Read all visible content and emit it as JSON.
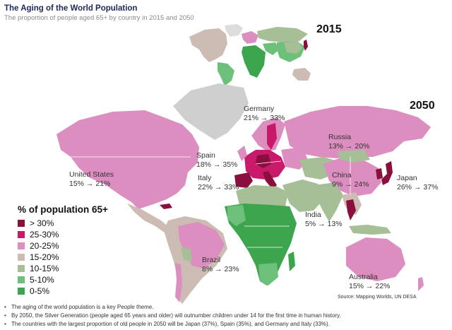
{
  "header": {
    "title": "The Aging of the World Population",
    "subtitle": "The proportion of people aged 65+ by country in 2015 and 2050"
  },
  "years": {
    "small_map": "2015",
    "large_map": "2050"
  },
  "country_labels": [
    {
      "name": "Germany",
      "values": "21% → 33%"
    },
    {
      "name": "Russia",
      "values": "13% → 20%"
    },
    {
      "name": "Spain",
      "values": "18% → 35%"
    },
    {
      "name": "United States",
      "values": "15% → 21%"
    },
    {
      "name": "Italy",
      "values": "22% → 33%"
    },
    {
      "name": "China",
      "values": "9% → 24%"
    },
    {
      "name": "Japan",
      "values": "26% → 37%"
    },
    {
      "name": "India",
      "values": "5% → 13%"
    },
    {
      "name": "Brazil",
      "values": "8% → 23%"
    },
    {
      "name": "Australia",
      "values": "15% → 22%"
    }
  ],
  "legend": {
    "title": "% of population 65+",
    "items": [
      {
        "label": "> 30%",
        "color": "#8b0f3c"
      },
      {
        "label": "25-30%",
        "color": "#c8196b"
      },
      {
        "label": "20-25%",
        "color": "#dc8ec0"
      },
      {
        "label": "15-20%",
        "color": "#cdbcb3"
      },
      {
        "label": "10-15%",
        "color": "#a7bf96"
      },
      {
        "label": "5-10%",
        "color": "#6cc07a"
      },
      {
        "label": "0-5%",
        "color": "#3da54e"
      }
    ]
  },
  "source": "Source: Mapping Worlds, UN DESA",
  "notes": [
    "The aging of the world population is a key People theme.",
    "By 2050, the Silver Generation (people aged 65 years and older) will outnumber children under 14 for the first time in human history.",
    "The countries with the largest proportion of old people in 2050 will be Japan (37%), Spain (35%), and Germany and Italy (33%)."
  ],
  "map_regions_2050": [
    {
      "region": "north-america",
      "bucket": "20-25%"
    },
    {
      "region": "greenland",
      "bucket": "no-data"
    },
    {
      "region": "central-america",
      "bucket": "15-20%"
    },
    {
      "region": "south-america",
      "bucket": "15-20%"
    },
    {
      "region": "brazil",
      "bucket": "20-25%"
    },
    {
      "region": "spain",
      "bucket": "> 30%"
    },
    {
      "region": "western-europe",
      "bucket": "25-30%"
    },
    {
      "region": "scandinavia",
      "bucket": "20-25%"
    },
    {
      "region": "eastern-europe",
      "bucket": "20-25%"
    },
    {
      "region": "russia",
      "bucket": "20-25%"
    },
    {
      "region": "north-africa",
      "bucket": "10-15%"
    },
    {
      "region": "sub-saharan-africa",
      "bucket": "0-5%"
    },
    {
      "region": "middle-east",
      "bucket": "10-15%"
    },
    {
      "region": "central-asia",
      "bucket": "10-15%"
    },
    {
      "region": "china",
      "bucket": "20-25%"
    },
    {
      "region": "india",
      "bucket": "10-15%"
    },
    {
      "region": "southeast-asia",
      "bucket": "15-20%"
    },
    {
      "region": "japan",
      "bucket": "> 30%"
    },
    {
      "region": "korea",
      "bucket": "> 30%"
    },
    {
      "region": "australia",
      "bucket": "20-25%"
    }
  ]
}
